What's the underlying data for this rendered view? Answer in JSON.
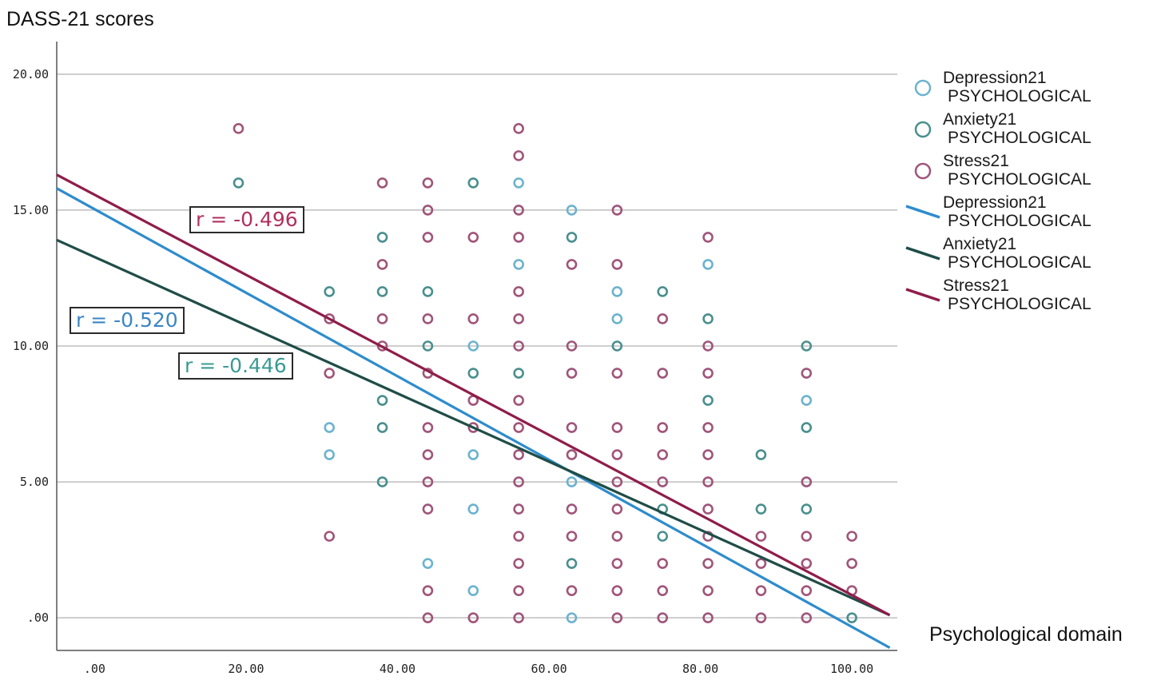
{
  "chart_data": {
    "type": "scatter",
    "title": "",
    "ylabel": "DASS-21 scores",
    "xlabel": "Psychological domain",
    "xlim": [
      -5,
      106
    ],
    "ylim": [
      -1.2,
      21.2
    ],
    "x_ticks": [
      0,
      20,
      40,
      60,
      80,
      100
    ],
    "x_tick_labels": [
      ".00",
      "20.00",
      "40.00",
      "60.00",
      "80.00",
      "100.00"
    ],
    "y_ticks": [
      0,
      5,
      10,
      15,
      20
    ],
    "y_tick_labels": [
      ".00",
      "5.00",
      "10.00",
      "15.00",
      "20.00"
    ],
    "grid": "horizontal",
    "legend_position": "right",
    "series": [
      {
        "name": "Depression21 PSYCHOLOGICAL",
        "color": "#6cb3cf",
        "points": [
          [
            31,
            7
          ],
          [
            31,
            6
          ],
          [
            44,
            2
          ],
          [
            50,
            10
          ],
          [
            50,
            6
          ],
          [
            50,
            4
          ],
          [
            50,
            1
          ],
          [
            56,
            16
          ],
          [
            56,
            13
          ],
          [
            63,
            15
          ],
          [
            63,
            5
          ],
          [
            63,
            0
          ],
          [
            69,
            12
          ],
          [
            69,
            11
          ],
          [
            81,
            13
          ],
          [
            94,
            8
          ]
        ]
      },
      {
        "name": "Anxiety21 PSYCHOLOGICAL",
        "color": "#4a8f8f",
        "points": [
          [
            19,
            16
          ],
          [
            31,
            12
          ],
          [
            38,
            14
          ],
          [
            38,
            12
          ],
          [
            38,
            8
          ],
          [
            38,
            7
          ],
          [
            38,
            5
          ],
          [
            44,
            12
          ],
          [
            44,
            10
          ],
          [
            50,
            16
          ],
          [
            50,
            9
          ],
          [
            56,
            9
          ],
          [
            63,
            14
          ],
          [
            63,
            2
          ],
          [
            69,
            10
          ],
          [
            75,
            12
          ],
          [
            75,
            4
          ],
          [
            75,
            3
          ],
          [
            81,
            11
          ],
          [
            81,
            8
          ],
          [
            88,
            6
          ],
          [
            88,
            4
          ],
          [
            94,
            10
          ],
          [
            94,
            7
          ],
          [
            94,
            4
          ],
          [
            100,
            0
          ]
        ]
      },
      {
        "name": "Stress21 PSYCHOLOGICAL",
        "color": "#a0557a",
        "points": [
          [
            19,
            18
          ],
          [
            31,
            11
          ],
          [
            31,
            9
          ],
          [
            31,
            3
          ],
          [
            38,
            16
          ],
          [
            38,
            13
          ],
          [
            38,
            11
          ],
          [
            38,
            10
          ],
          [
            44,
            16
          ],
          [
            44,
            15
          ],
          [
            44,
            14
          ],
          [
            44,
            11
          ],
          [
            44,
            9
          ],
          [
            44,
            7
          ],
          [
            44,
            6
          ],
          [
            44,
            5
          ],
          [
            44,
            4
          ],
          [
            44,
            1
          ],
          [
            44,
            0
          ],
          [
            50,
            14
          ],
          [
            50,
            11
          ],
          [
            50,
            8
          ],
          [
            50,
            7
          ],
          [
            50,
            0
          ],
          [
            56,
            18
          ],
          [
            56,
            17
          ],
          [
            56,
            15
          ],
          [
            56,
            14
          ],
          [
            56,
            12
          ],
          [
            56,
            11
          ],
          [
            56,
            10
          ],
          [
            56,
            8
          ],
          [
            56,
            7
          ],
          [
            56,
            6
          ],
          [
            56,
            5
          ],
          [
            56,
            4
          ],
          [
            56,
            3
          ],
          [
            56,
            2
          ],
          [
            56,
            1
          ],
          [
            56,
            0
          ],
          [
            63,
            13
          ],
          [
            63,
            10
          ],
          [
            63,
            9
          ],
          [
            63,
            7
          ],
          [
            63,
            6
          ],
          [
            63,
            4
          ],
          [
            63,
            3
          ],
          [
            63,
            1
          ],
          [
            69,
            15
          ],
          [
            69,
            13
          ],
          [
            69,
            9
          ],
          [
            69,
            7
          ],
          [
            69,
            6
          ],
          [
            69,
            5
          ],
          [
            69,
            4
          ],
          [
            69,
            3
          ],
          [
            69,
            2
          ],
          [
            69,
            1
          ],
          [
            69,
            0
          ],
          [
            75,
            11
          ],
          [
            75,
            9
          ],
          [
            75,
            7
          ],
          [
            75,
            6
          ],
          [
            75,
            5
          ],
          [
            75,
            2
          ],
          [
            75,
            1
          ],
          [
            75,
            0
          ],
          [
            81,
            14
          ],
          [
            81,
            10
          ],
          [
            81,
            9
          ],
          [
            81,
            7
          ],
          [
            81,
            6
          ],
          [
            81,
            5
          ],
          [
            81,
            4
          ],
          [
            81,
            3
          ],
          [
            81,
            2
          ],
          [
            81,
            1
          ],
          [
            81,
            0
          ],
          [
            88,
            3
          ],
          [
            88,
            2
          ],
          [
            88,
            1
          ],
          [
            88,
            0
          ],
          [
            94,
            9
          ],
          [
            94,
            5
          ],
          [
            94,
            3
          ],
          [
            94,
            2
          ],
          [
            94,
            1
          ],
          [
            94,
            0
          ],
          [
            100,
            3
          ],
          [
            100,
            2
          ],
          [
            100,
            1
          ]
        ]
      }
    ],
    "fit_lines": [
      {
        "name": "Depression21 PSYCHOLOGICAL",
        "color": "#2e8ccc",
        "x": [
          -5,
          105
        ],
        "y": [
          15.8,
          -1.1
        ],
        "r_label": "r = -0.520"
      },
      {
        "name": "Anxiety21 PSYCHOLOGICAL",
        "color": "#1f4d47",
        "x": [
          -5,
          105
        ],
        "y": [
          13.9,
          0.1
        ],
        "r_label": "r = -0.446"
      },
      {
        "name": "Stress21 PSYCHOLOGICAL",
        "color": "#8f1d4a",
        "x": [
          -5,
          105
        ],
        "y": [
          16.3,
          0.1
        ],
        "r_label": "r = -0.496"
      }
    ]
  },
  "legend": {
    "items": [
      {
        "kind": "marker",
        "name": "Depression21",
        "sub": "PSYCHOLOGICAL",
        "color": "#6cb3cf"
      },
      {
        "kind": "marker",
        "name": "Anxiety21",
        "sub": "PSYCHOLOGICAL",
        "color": "#4a8f8f"
      },
      {
        "kind": "marker",
        "name": "Stress21",
        "sub": "PSYCHOLOGICAL",
        "color": "#a0557a"
      },
      {
        "kind": "line",
        "name": "Depression21",
        "sub": "PSYCHOLOGICAL",
        "color": "#2e8ccc"
      },
      {
        "kind": "line",
        "name": "Anxiety21",
        "sub": "PSYCHOLOGICAL",
        "color": "#1f4d47"
      },
      {
        "kind": "line",
        "name": "Stress21",
        "sub": "PSYCHOLOGICAL",
        "color": "#8f1d4a"
      }
    ]
  },
  "annotations": {
    "stress_r": {
      "text": "r = -0.496",
      "color": "#b0305f"
    },
    "depression_r": {
      "text": "r = -0.520",
      "color": "#3a86c4"
    },
    "anxiety_r": {
      "text": "r = -0.446",
      "color": "#3a9a92"
    }
  }
}
